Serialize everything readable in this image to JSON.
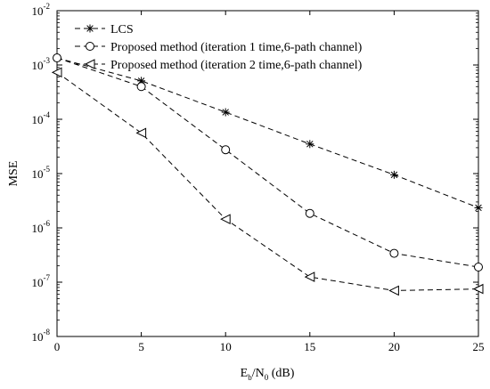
{
  "chart_data": {
    "type": "line",
    "x": [
      0,
      5,
      10,
      15,
      20,
      25
    ],
    "xlim": [
      0,
      25
    ],
    "xticks": [
      "0",
      "5",
      "10",
      "15",
      "20",
      "25"
    ],
    "xlabel": {
      "base": "E",
      "sub1": "b",
      "mid": "/N",
      "sub2": "0",
      "tail": " (dB)"
    },
    "ylabel": "MSE",
    "yscale": "log",
    "ylim": [
      1e-08,
      0.01
    ],
    "yticks": [
      {
        "base": "10",
        "exp": "-8"
      },
      {
        "base": "10",
        "exp": "-7"
      },
      {
        "base": "10",
        "exp": "-6"
      },
      {
        "base": "10",
        "exp": "-5"
      },
      {
        "base": "10",
        "exp": "-4"
      },
      {
        "base": "10",
        "exp": "-3"
      },
      {
        "base": "10",
        "exp": "-2"
      }
    ],
    "legend_position": "top-left",
    "series": [
      {
        "name": "LCS",
        "marker": "asterisk",
        "values": [
          0.00135,
          0.00051,
          0.000135,
          3.5e-05,
          9.5e-06,
          2.35e-06
        ]
      },
      {
        "name": "Proposed method (iteration 1 time,6-path channel)",
        "marker": "circle",
        "values": [
          0.00135,
          0.0004,
          2.75e-05,
          1.85e-06,
          3.4e-07,
          1.9e-07
        ]
      },
      {
        "name": "Proposed method (iteration 2 time,6-path channel)",
        "marker": "triangle-left",
        "values": [
          0.00073,
          5.6e-05,
          1.45e-06,
          1.25e-07,
          7e-08,
          7.5e-08
        ]
      }
    ]
  }
}
